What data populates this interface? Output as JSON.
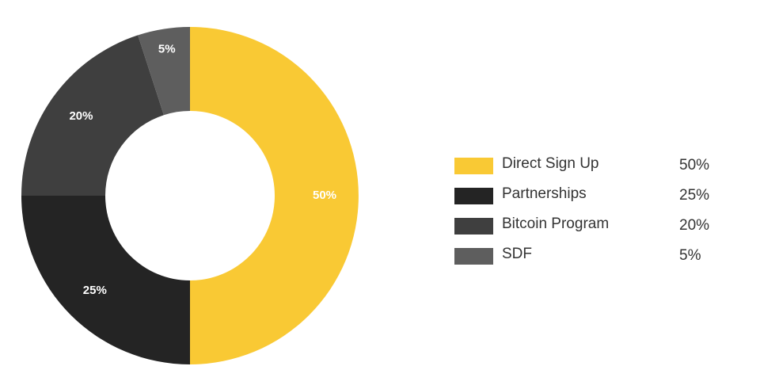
{
  "chart_data": {
    "type": "pie",
    "donut": true,
    "title": "",
    "legend_position": "right",
    "slices": [
      {
        "label": "Direct Sign Up",
        "value": 50,
        "display": "50%",
        "color": "#f9c934"
      },
      {
        "label": "Partnerships",
        "value": 25,
        "display": "25%",
        "color": "#242424"
      },
      {
        "label": "Bitcoin Program",
        "value": 20,
        "display": "20%",
        "color": "#3f3f3f"
      },
      {
        "label": "SDF",
        "value": 5,
        "display": "5%",
        "color": "#5e5e5e"
      }
    ]
  }
}
